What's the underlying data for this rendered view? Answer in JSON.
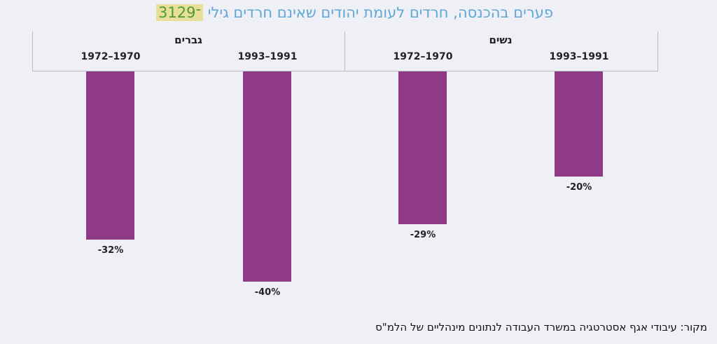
{
  "chart_data": {
    "type": "bar",
    "title": "פערים בהכנסה, חרדים לעומת יהודים שאינם חרדים גילי",
    "title_age": "31־29",
    "groups": [
      {
        "name": "גברים",
        "categories": [
          "1972–1970",
          "1993–1991"
        ],
        "values": [
          -32,
          -40
        ],
        "labels": [
          "-32%",
          "-40%"
        ]
      },
      {
        "name": "נשים",
        "categories": [
          "1972–1970",
          "1993–1991"
        ],
        "values": [
          -29,
          -20
        ],
        "labels": [
          "-29%",
          "-20%"
        ]
      }
    ],
    "ylim": [
      -40,
      0
    ],
    "grid": false,
    "bar_color": "#8e3a87",
    "source": "מקור: עיבודי אגף אסטרטגיה במשרד העבודה לנתונים מינהליים של הלמ\"ס"
  }
}
